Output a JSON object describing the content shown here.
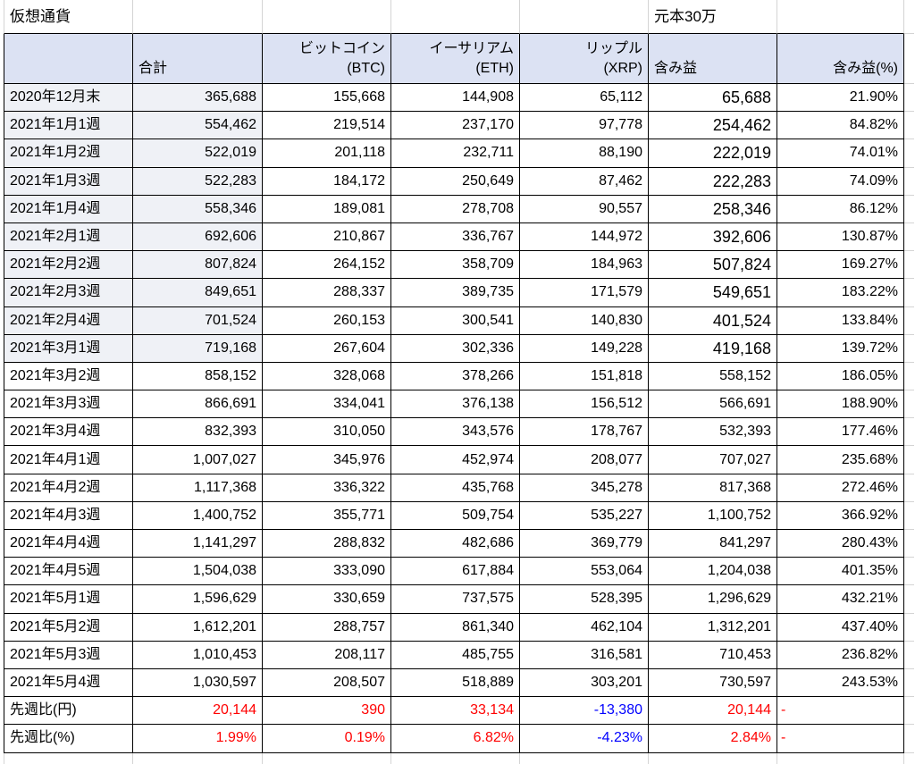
{
  "sheet": {
    "title": "仮想通貨",
    "principal": "元本30万"
  },
  "header": {
    "total": "合計",
    "btc": [
      "ビットコイン",
      "(BTC)"
    ],
    "eth": [
      "イーサリアム",
      "(ETH)"
    ],
    "xrp": [
      "リップル",
      "(XRP)"
    ],
    "unrealized_gain": "含み益",
    "unrealized_gain_pct": "含み益(%)"
  },
  "rows": [
    [
      "2020年12月末",
      "365,688",
      "155,668",
      "144,908",
      "65,112",
      "65,688",
      "21.90%"
    ],
    [
      "2021年1月1週",
      "554,462",
      "219,514",
      "237,170",
      "97,778",
      "254,462",
      "84.82%"
    ],
    [
      "2021年1月2週",
      "522,019",
      "201,118",
      "232,711",
      "88,190",
      "222,019",
      "74.01%"
    ],
    [
      "2021年1月3週",
      "522,283",
      "184,172",
      "250,649",
      "87,462",
      "222,283",
      "74.09%"
    ],
    [
      "2021年1月4週",
      "558,346",
      "189,081",
      "278,708",
      "90,557",
      "258,346",
      "86.12%"
    ],
    [
      "2021年2月1週",
      "692,606",
      "210,867",
      "336,767",
      "144,972",
      "392,606",
      "130.87%"
    ],
    [
      "2021年2月2週",
      "807,824",
      "264,152",
      "358,709",
      "184,963",
      "507,824",
      "169.27%"
    ],
    [
      "2021年2月3週",
      "849,651",
      "288,337",
      "389,735",
      "171,579",
      "549,651",
      "183.22%"
    ],
    [
      "2021年2月4週",
      "701,524",
      "260,153",
      "300,541",
      "140,830",
      "401,524",
      "133.84%"
    ],
    [
      "2021年3月1週",
      "719,168",
      "267,604",
      "302,336",
      "149,228",
      "419,168",
      "139.72%"
    ],
    [
      "2021年3月2週",
      "858,152",
      "328,068",
      "378,266",
      "151,818",
      "558,152",
      "186.05%"
    ],
    [
      "2021年3月3週",
      "866,691",
      "334,041",
      "376,138",
      "156,512",
      "566,691",
      "188.90%"
    ],
    [
      "2021年3月4週",
      "832,393",
      "310,050",
      "343,576",
      "178,767",
      "532,393",
      "177.46%"
    ],
    [
      "2021年4月1週",
      "1,007,027",
      "345,976",
      "452,974",
      "208,077",
      "707,027",
      "235.68%"
    ],
    [
      "2021年4月2週",
      "1,117,368",
      "336,322",
      "435,768",
      "345,278",
      "817,368",
      "272.46%"
    ],
    [
      "2021年4月3週",
      "1,400,752",
      "355,771",
      "509,754",
      "535,227",
      "1,100,752",
      "366.92%"
    ],
    [
      "2021年4月4週",
      "1,141,297",
      "288,832",
      "482,686",
      "369,779",
      "841,297",
      "280.43%"
    ],
    [
      "2021年4月5週",
      "1,504,038",
      "333,090",
      "617,884",
      "553,064",
      "1,204,038",
      "401.35%"
    ],
    [
      "2021年5月1週",
      "1,596,629",
      "330,659",
      "737,575",
      "528,395",
      "1,296,629",
      "432.21%"
    ],
    [
      "2021年5月2週",
      "1,612,201",
      "288,757",
      "861,340",
      "462,104",
      "1,312,201",
      "437.40%"
    ],
    [
      "2021年5月3週",
      "1,010,453",
      "208,117",
      "485,755",
      "316,581",
      "710,453",
      "236.82%"
    ],
    [
      "2021年5月4週",
      "1,030,597",
      "208,507",
      "518,889",
      "303,201",
      "730,597",
      "243.53%"
    ]
  ],
  "summary_rows": [
    {
      "label": "先週比(円)",
      "values": [
        "20,144",
        "390",
        "33,134",
        "-13,380",
        "20,144",
        "-"
      ],
      "colors": [
        "#ff0000",
        "#ff0000",
        "#ff0000",
        "#0000ff",
        "#ff0000",
        "#ff0000"
      ]
    },
    {
      "label": "先週比(%)",
      "values": [
        "1.99%",
        "0.19%",
        "6.82%",
        "-4.23%",
        "2.84%",
        "-"
      ],
      "colors": [
        "#ff0000",
        "#ff0000",
        "#ff0000",
        "#0000ff",
        "#ff0000",
        "#ff0000"
      ]
    }
  ],
  "colors": {
    "header_background": "#dce2f3",
    "highlight_background": "#eff1f6",
    "text": "#000000"
  }
}
